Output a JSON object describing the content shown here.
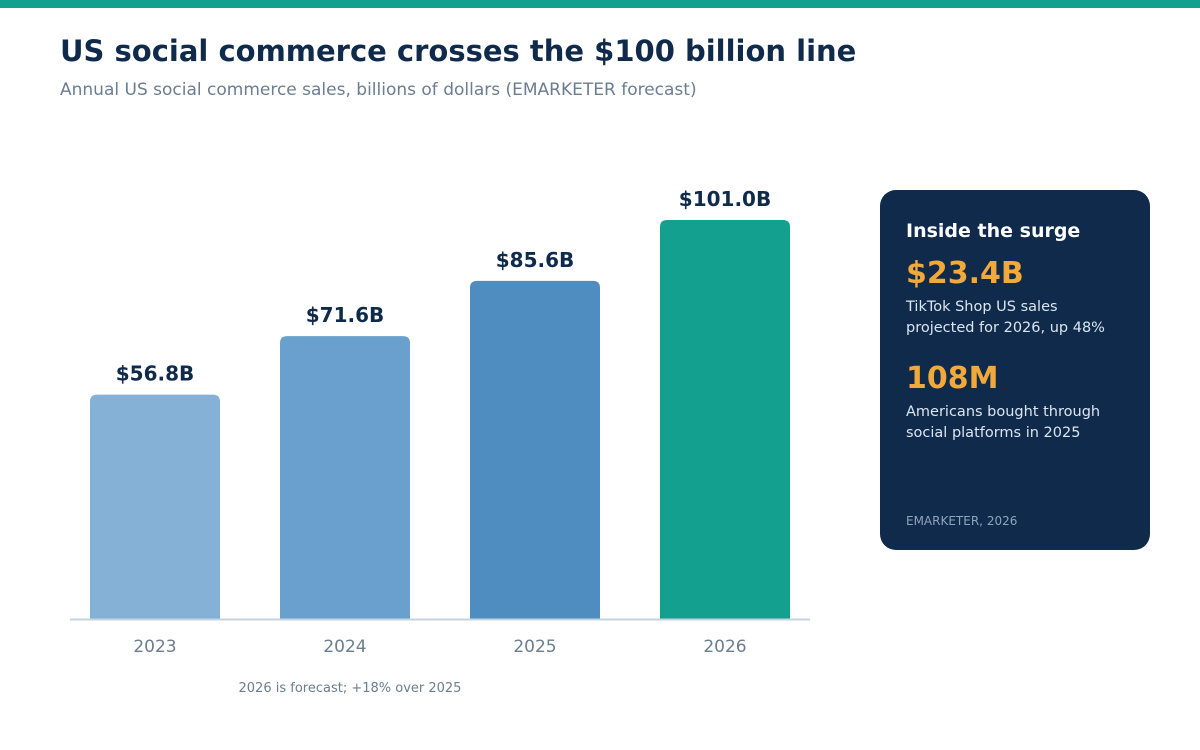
{
  "header": {
    "title": "US social commerce crosses the $100 billion line",
    "subtitle": "Annual US social commerce sales, billions of dollars (EMARKETER forecast)"
  },
  "colors": {
    "accent": "#13a08f",
    "navy": "#0f2a4a",
    "highlight": "#f0a93a",
    "axis_line": "#c5d3de",
    "muted_text": "#6b7d90"
  },
  "chart_data": {
    "type": "bar",
    "categories": [
      "2023",
      "2024",
      "2025",
      "2026"
    ],
    "values": [
      56.8,
      71.6,
      85.6,
      101.0
    ],
    "value_labels": [
      "$56.8B",
      "$71.6B",
      "$85.6B",
      "$101.0B"
    ],
    "bar_colors": [
      "#86b1d6",
      "#6aa0cd",
      "#4f8cc0",
      "#13a08f"
    ],
    "title": "",
    "xlabel": "",
    "ylabel": "",
    "ylim": [
      0,
      101.0
    ],
    "grid": false,
    "footnote": "2026 is forecast; +18% over 2025"
  },
  "panel": {
    "title": "Inside the surge",
    "stats": [
      {
        "value": "$23.4B",
        "description": "TikTok Shop US sales projected for 2026, up 48%"
      },
      {
        "value": "108M",
        "description": "Americans bought through social platforms in 2025"
      }
    ],
    "source": "EMARKETER, 2026"
  }
}
